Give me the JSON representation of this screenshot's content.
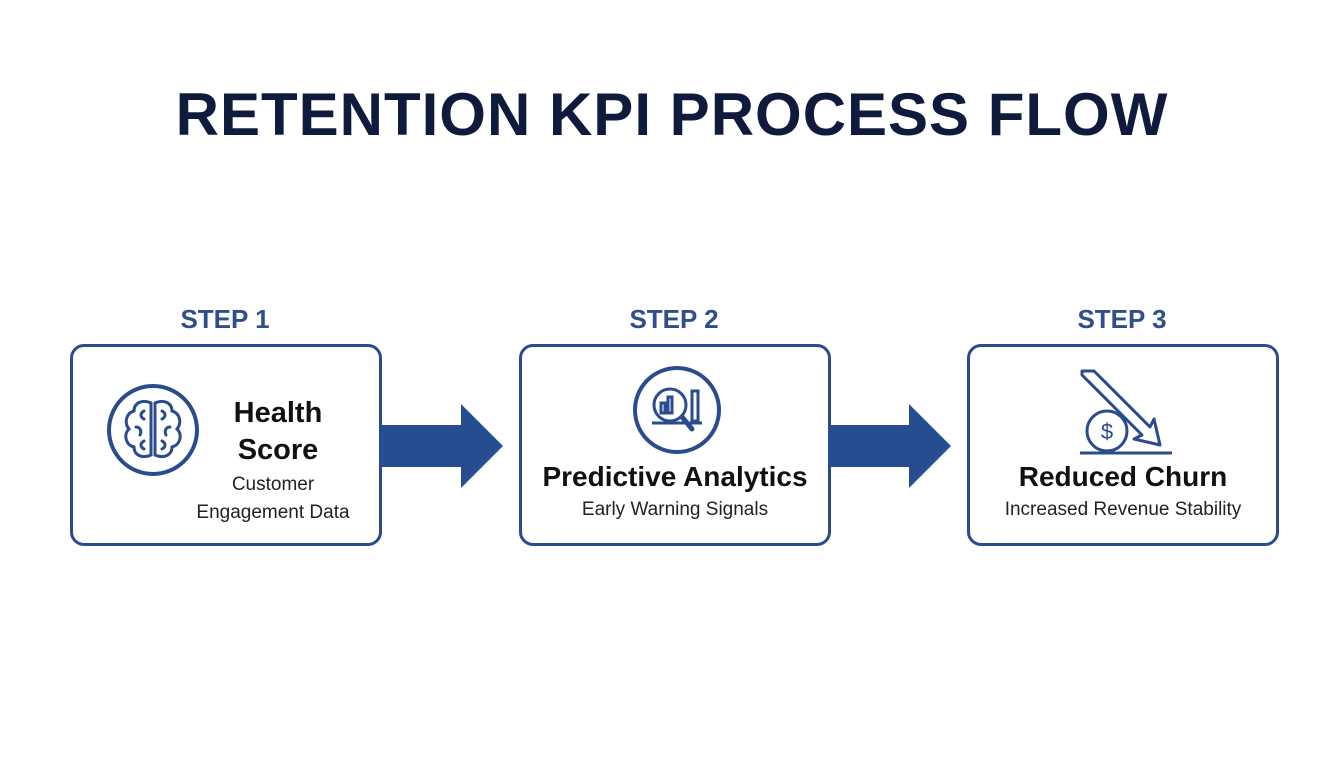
{
  "title": "RETENTION KPI PROCESS FLOW",
  "colors": {
    "title": "#0f1b3d",
    "accent": "#2a4b8d",
    "arrow": "#264d8f"
  },
  "steps": [
    {
      "label": "STEP 1",
      "heading_line1": "Health",
      "heading_line2": "Score",
      "sub_line1": "Customer",
      "sub_line2": "Engagement Data",
      "icon": "brain-icon"
    },
    {
      "label": "STEP 2",
      "heading": "Predictive Analytics",
      "sub": "Early Warning Signals",
      "icon": "magnifier-chart-icon"
    },
    {
      "label": "STEP 3",
      "heading": "Reduced Churn",
      "sub": "Increased Revenue Stability",
      "icon": "down-arrow-dollar-icon"
    }
  ]
}
